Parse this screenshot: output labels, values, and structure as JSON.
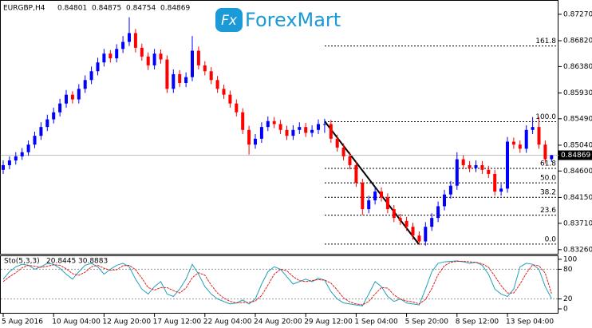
{
  "chart_data": {
    "type": "candlestick",
    "symbol": "EURGBP,H4",
    "logo_icon": "Fx",
    "logo": "ForexMart",
    "up_color": "#0000ff",
    "down_color": "#ff0000",
    "ylim": [
      0.8319,
      0.875
    ],
    "yticks": [
      {
        "value": 0.8727,
        "label": "0.87270"
      },
      {
        "value": 0.8682,
        "label": "0.86820"
      },
      {
        "value": 0.8638,
        "label": "0.86380"
      },
      {
        "value": 0.8593,
        "label": "0.85930"
      },
      {
        "value": 0.8549,
        "label": "0.85490"
      },
      {
        "value": 0.8504,
        "label": "0.85040"
      },
      {
        "value": 0.846,
        "label": "0.84600"
      },
      {
        "value": 0.8415,
        "label": "0.84150"
      },
      {
        "value": 0.8371,
        "label": "0.83710"
      },
      {
        "value": 0.8326,
        "label": "0.83260"
      }
    ],
    "categories": [
      "5 Aug 2016",
      null,
      null,
      null,
      null,
      null,
      null,
      null,
      "10 Aug 04:00",
      null,
      null,
      null,
      null,
      null,
      null,
      null,
      "12 Aug 20:00",
      null,
      null,
      null,
      null,
      null,
      null,
      null,
      "17 Aug 12:00",
      null,
      null,
      null,
      null,
      null,
      null,
      null,
      "22 Aug 04:00",
      null,
      null,
      null,
      null,
      null,
      null,
      null,
      "24 Aug 20:00",
      null,
      null,
      null,
      null,
      null,
      null,
      null,
      "29 Aug 12:00",
      null,
      null,
      null,
      null,
      null,
      null,
      null,
      "1 Sep 04:00",
      null,
      null,
      null,
      null,
      null,
      null,
      null,
      "5 Sep 20:00",
      null,
      null,
      null,
      null,
      null,
      null,
      null,
      "8 Sep 12:00",
      null,
      null,
      null,
      null,
      null,
      null,
      null,
      "13 Sep 04:00",
      null,
      null,
      null,
      null,
      null,
      null,
      null
    ],
    "candles": [
      [
        0.8462,
        0.8478,
        0.8455,
        0.847
      ],
      [
        0.847,
        0.8485,
        0.8463,
        0.8478
      ],
      [
        0.8478,
        0.8492,
        0.8471,
        0.8485
      ],
      [
        0.8485,
        0.8499,
        0.8479,
        0.8492
      ],
      [
        0.8492,
        0.8512,
        0.8486,
        0.8505
      ],
      [
        0.8505,
        0.8527,
        0.8499,
        0.852
      ],
      [
        0.852,
        0.8543,
        0.8513,
        0.8535
      ],
      [
        0.8535,
        0.8556,
        0.8528,
        0.8548
      ],
      [
        0.8548,
        0.8568,
        0.8541,
        0.856
      ],
      [
        0.856,
        0.8583,
        0.8553,
        0.8575
      ],
      [
        0.8575,
        0.8598,
        0.8568,
        0.859
      ],
      [
        0.859,
        0.8596,
        0.8575,
        0.8582
      ],
      [
        0.8582,
        0.8608,
        0.8575,
        0.86
      ],
      [
        0.86,
        0.8623,
        0.8593,
        0.8615
      ],
      [
        0.8615,
        0.8638,
        0.8608,
        0.863
      ],
      [
        0.863,
        0.8653,
        0.8623,
        0.8645
      ],
      [
        0.8645,
        0.8668,
        0.8638,
        0.866
      ],
      [
        0.866,
        0.8666,
        0.8645,
        0.8652
      ],
      [
        0.8652,
        0.8676,
        0.8645,
        0.8668
      ],
      [
        0.8668,
        0.869,
        0.8661,
        0.868
      ],
      [
        0.868,
        0.8722,
        0.8673,
        0.8695
      ],
      [
        0.8695,
        0.8702,
        0.8662,
        0.867
      ],
      [
        0.867,
        0.8677,
        0.8648,
        0.8655
      ],
      [
        0.8655,
        0.8662,
        0.8632,
        0.864
      ],
      [
        0.864,
        0.8668,
        0.8633,
        0.866
      ],
      [
        0.866,
        0.8667,
        0.8643,
        0.865
      ],
      [
        0.865,
        0.8657,
        0.8593,
        0.86
      ],
      [
        0.86,
        0.8633,
        0.8593,
        0.8625
      ],
      [
        0.8625,
        0.8632,
        0.8603,
        0.861
      ],
      [
        0.861,
        0.8628,
        0.8603,
        0.862
      ],
      [
        0.862,
        0.869,
        0.8613,
        0.8665
      ],
      [
        0.8665,
        0.8672,
        0.8633,
        0.864
      ],
      [
        0.864,
        0.8647,
        0.8623,
        0.863
      ],
      [
        0.863,
        0.8637,
        0.8608,
        0.8615
      ],
      [
        0.8615,
        0.8622,
        0.8593,
        0.86
      ],
      [
        0.86,
        0.8607,
        0.8583,
        0.859
      ],
      [
        0.859,
        0.8597,
        0.8568,
        0.8575
      ],
      [
        0.8575,
        0.8582,
        0.8553,
        0.856
      ],
      [
        0.856,
        0.8567,
        0.8523,
        0.853
      ],
      [
        0.853,
        0.8537,
        0.8488,
        0.8505
      ],
      [
        0.8505,
        0.8523,
        0.8498,
        0.8515
      ],
      [
        0.8515,
        0.8543,
        0.8508,
        0.8535
      ],
      [
        0.8535,
        0.8553,
        0.8528,
        0.8545
      ],
      [
        0.8545,
        0.8552,
        0.8533,
        0.854
      ],
      [
        0.854,
        0.8547,
        0.8523,
        0.853
      ],
      [
        0.853,
        0.8537,
        0.8513,
        0.852
      ],
      [
        0.852,
        0.8538,
        0.8513,
        0.853
      ],
      [
        0.853,
        0.8543,
        0.8523,
        0.8535
      ],
      [
        0.8535,
        0.8542,
        0.8518,
        0.8525
      ],
      [
        0.8525,
        0.8538,
        0.8518,
        0.853
      ],
      [
        0.853,
        0.8548,
        0.8523,
        0.854
      ],
      [
        0.854,
        0.8549,
        0.8525,
        0.854
      ],
      [
        0.854,
        0.8547,
        0.8508,
        0.8515
      ],
      [
        0.8515,
        0.8522,
        0.8493,
        0.85
      ],
      [
        0.85,
        0.8507,
        0.8478,
        0.8485
      ],
      [
        0.8485,
        0.8492,
        0.8463,
        0.847
      ],
      [
        0.847,
        0.8477,
        0.8433,
        0.844
      ],
      [
        0.844,
        0.8447,
        0.8385,
        0.8395
      ],
      [
        0.8395,
        0.8418,
        0.8388,
        0.841
      ],
      [
        0.841,
        0.8433,
        0.8403,
        0.8425
      ],
      [
        0.8425,
        0.8432,
        0.8408,
        0.8415
      ],
      [
        0.8415,
        0.8422,
        0.8388,
        0.8395
      ],
      [
        0.8395,
        0.8402,
        0.8373,
        0.838
      ],
      [
        0.838,
        0.8387,
        0.8368,
        0.8375
      ],
      [
        0.8375,
        0.8382,
        0.8358,
        0.8365
      ],
      [
        0.8365,
        0.8372,
        0.8343,
        0.835
      ],
      [
        0.835,
        0.8357,
        0.8334,
        0.834
      ],
      [
        0.834,
        0.8373,
        0.8333,
        0.8365
      ],
      [
        0.8365,
        0.8388,
        0.8358,
        0.838
      ],
      [
        0.838,
        0.8408,
        0.8373,
        0.84
      ],
      [
        0.84,
        0.8428,
        0.8393,
        0.842
      ],
      [
        0.842,
        0.8443,
        0.8413,
        0.8435
      ],
      [
        0.8435,
        0.8492,
        0.8428,
        0.848
      ],
      [
        0.848,
        0.8487,
        0.8463,
        0.847
      ],
      [
        0.847,
        0.8477,
        0.8458,
        0.8465
      ],
      [
        0.8465,
        0.8478,
        0.8458,
        0.847
      ],
      [
        0.847,
        0.8477,
        0.8455,
        0.8462
      ],
      [
        0.8462,
        0.8469,
        0.8448,
        0.8455
      ],
      [
        0.8455,
        0.8462,
        0.8418,
        0.8425
      ],
      [
        0.8425,
        0.8438,
        0.8418,
        0.843
      ],
      [
        0.843,
        0.8518,
        0.8423,
        0.851
      ],
      [
        0.851,
        0.8517,
        0.8498,
        0.8505
      ],
      [
        0.8505,
        0.8512,
        0.8491,
        0.8498
      ],
      [
        0.8498,
        0.8538,
        0.8491,
        0.853
      ],
      [
        0.853,
        0.8552,
        0.8523,
        0.8535
      ],
      [
        0.8535,
        0.8552,
        0.8498,
        0.8505
      ],
      [
        0.8505,
        0.8512,
        0.8473,
        0.848
      ],
      [
        0.84801,
        0.84875,
        0.84754,
        0.84869
      ]
    ],
    "fib_levels": [
      {
        "label": "161.8",
        "value": 0.8673
      },
      {
        "label": "100.0",
        "value": 0.85441
      },
      {
        "label": "61.8",
        "value": 0.84644
      },
      {
        "label": "50.0",
        "value": 0.84398
      },
      {
        "label": "38.2",
        "value": 0.84152
      },
      {
        "label": "23.6",
        "value": 0.83847
      },
      {
        "label": "0.0",
        "value": 0.83355
      }
    ],
    "stochastic": {
      "name": "Sto(5,3,3)",
      "ylim": [
        -8,
        108
      ],
      "yticks": [
        100,
        80,
        20,
        0
      ],
      "levels": [
        80,
        20
      ],
      "series": [
        {
          "name": "main",
          "color": "#20a0b8",
          "values": [
            60,
            75,
            85,
            90,
            88,
            80,
            85,
            92,
            90,
            82,
            70,
            60,
            75,
            88,
            92,
            85,
            70,
            80,
            88,
            92,
            85,
            60,
            40,
            30,
            45,
            55,
            30,
            25,
            40,
            60,
            90,
            70,
            45,
            30,
            20,
            15,
            10,
            12,
            18,
            10,
            20,
            50,
            75,
            85,
            80,
            65,
            50,
            55,
            60,
            55,
            62,
            58,
            35,
            20,
            12,
            10,
            8,
            6,
            30,
            55,
            45,
            25,
            15,
            20,
            12,
            10,
            8,
            40,
            75,
            92,
            95,
            96,
            97,
            95,
            92,
            94,
            88,
            70,
            40,
            30,
            25,
            40,
            85,
            92,
            90,
            80,
            45,
            20.8445
          ]
        },
        {
          "name": "signal",
          "color": "#e02020",
          "values": [
            55,
            65,
            73,
            83,
            88,
            86,
            84,
            86,
            89,
            88,
            81,
            71,
            68,
            74,
            85,
            88,
            82,
            78,
            79,
            87,
            88,
            79,
            62,
            43,
            38,
            43,
            43,
            37,
            32,
            42,
            63,
            73,
            68,
            48,
            32,
            22,
            15,
            12,
            13,
            13,
            16,
            27,
            48,
            70,
            80,
            77,
            65,
            57,
            55,
            57,
            59,
            58,
            52,
            38,
            22,
            14,
            10,
            8,
            15,
            30,
            43,
            42,
            28,
            20,
            16,
            14,
            10,
            19,
            41,
            69,
            87,
            94,
            96,
            96,
            95,
            94,
            91,
            84,
            66,
            47,
            32,
            32,
            50,
            72,
            89,
            87,
            72,
            30.8883
          ]
        }
      ]
    }
  }
}
